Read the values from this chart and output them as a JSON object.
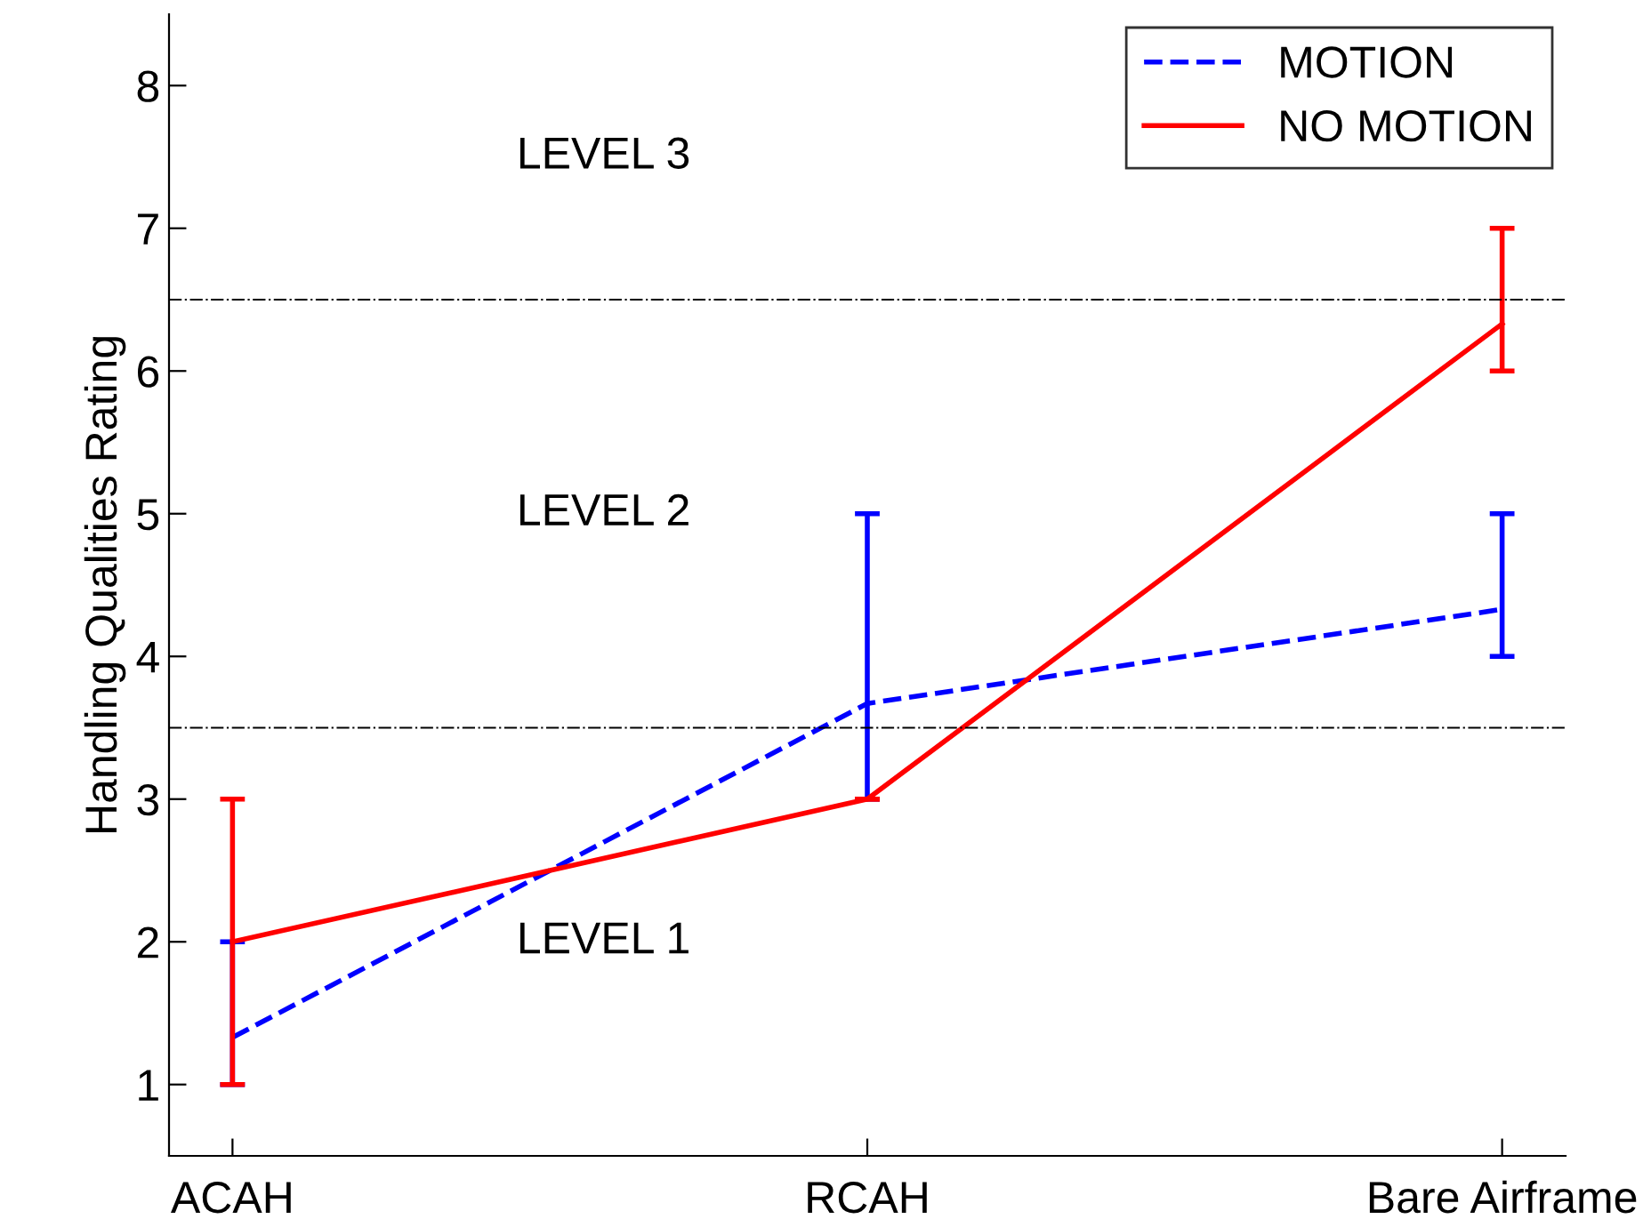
{
  "chart_data": {
    "type": "line",
    "ylabel": "Handling Qualities Rating",
    "categories": [
      "ACAH",
      "RCAH",
      "Bare Airframe"
    ],
    "series": [
      {
        "name": "MOTION",
        "color": "#0000ff",
        "line_style": "dashed",
        "values": [
          1.33,
          3.67,
          4.33
        ],
        "errors": [
          [
            1,
            2
          ],
          [
            3,
            5
          ],
          [
            4,
            5
          ]
        ]
      },
      {
        "name": "NO MOTION",
        "color": "#ff0000",
        "line_style": "solid",
        "values": [
          2,
          3,
          6.33
        ],
        "errors": [
          [
            1,
            3
          ],
          [
            3,
            3
          ],
          [
            6,
            7
          ]
        ]
      }
    ],
    "ylim": [
      0.5,
      8.5
    ],
    "yticks": [
      1,
      2,
      3,
      4,
      5,
      6,
      7,
      8
    ],
    "ref_lines": [
      {
        "axis": "y",
        "value": 3.5,
        "color": "#000000",
        "line_style": "dashdot"
      },
      {
        "axis": "y",
        "value": 6.5,
        "color": "#000000",
        "line_style": "dashdot"
      }
    ],
    "annotations": [
      "LEVEL 1",
      "LEVEL 2",
      "LEVEL 3"
    ],
    "grid": false,
    "legend": "top right",
    "marker": "none"
  }
}
